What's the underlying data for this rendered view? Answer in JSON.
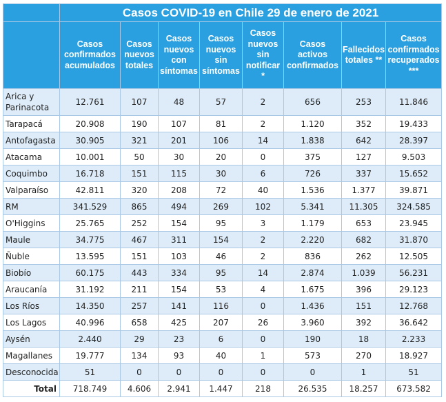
{
  "title": "Casos COVID-19 en Chile 29 de enero de 2021",
  "columns": [
    "Casos confirmados acumulados",
    "Casos nuevos totales",
    "Casos nuevos con síntomas",
    "Casos nuevos sin síntomas",
    "Casos nuevos sin notificar *",
    "Casos activos confirmados",
    "Fallecidos totales **",
    "Casos confirmados recuperados ***"
  ],
  "rows": [
    [
      "Arica y Parinacota",
      "12.761",
      "107",
      "48",
      "57",
      "2",
      "656",
      "253",
      "11.846"
    ],
    [
      "Tarapacá",
      "20.908",
      "190",
      "107",
      "81",
      "2",
      "1.120",
      "352",
      "19.433"
    ],
    [
      "Antofagasta",
      "30.905",
      "321",
      "201",
      "106",
      "14",
      "1.838",
      "642",
      "28.397"
    ],
    [
      "Atacama",
      "10.001",
      "50",
      "30",
      "20",
      "0",
      "375",
      "127",
      "9.503"
    ],
    [
      "Coquimbo",
      "16.718",
      "151",
      "115",
      "30",
      "6",
      "726",
      "337",
      "15.652"
    ],
    [
      "Valparaíso",
      "42.811",
      "320",
      "208",
      "72",
      "40",
      "1.536",
      "1.377",
      "39.871"
    ],
    [
      "RM",
      "341.529",
      "865",
      "494",
      "269",
      "102",
      "5.341",
      "11.305",
      "324.585"
    ],
    [
      "O'Higgins",
      "25.765",
      "252",
      "154",
      "95",
      "3",
      "1.179",
      "653",
      "23.945"
    ],
    [
      "Maule",
      "34.775",
      "467",
      "311",
      "154",
      "2",
      "2.220",
      "682",
      "31.870"
    ],
    [
      "Ñuble",
      "13.595",
      "151",
      "103",
      "46",
      "2",
      "836",
      "262",
      "12.505"
    ],
    [
      "Biobío",
      "60.175",
      "443",
      "334",
      "95",
      "14",
      "2.874",
      "1.039",
      "56.231"
    ],
    [
      "Araucanía",
      "31.192",
      "211",
      "154",
      "53",
      "4",
      "1.675",
      "396",
      "29.123"
    ],
    [
      "Los Ríos",
      "14.350",
      "257",
      "141",
      "116",
      "0",
      "1.436",
      "151",
      "12.768"
    ],
    [
      "Los Lagos",
      "40.996",
      "658",
      "425",
      "207",
      "26",
      "3.960",
      "392",
      "36.642"
    ],
    [
      "Aysén",
      "2.440",
      "29",
      "23",
      "6",
      "0",
      "190",
      "18",
      "2.233"
    ],
    [
      "Magallanes",
      "19.777",
      "134",
      "93",
      "40",
      "1",
      "573",
      "270",
      "18.927"
    ],
    [
      "Desconocida",
      "51",
      "0",
      "0",
      "0",
      "0",
      "0",
      "1",
      "51"
    ]
  ],
  "total": [
    "Total",
    "718.749",
    "4.606",
    "2.941",
    "1.447",
    "218",
    "26.535",
    "18.257",
    "673.582"
  ],
  "colors": {
    "header_bg": "#2aa0e0",
    "header_text": "#ffffff",
    "row_shade": "#ddecf8",
    "border": "#a9c8e6"
  }
}
